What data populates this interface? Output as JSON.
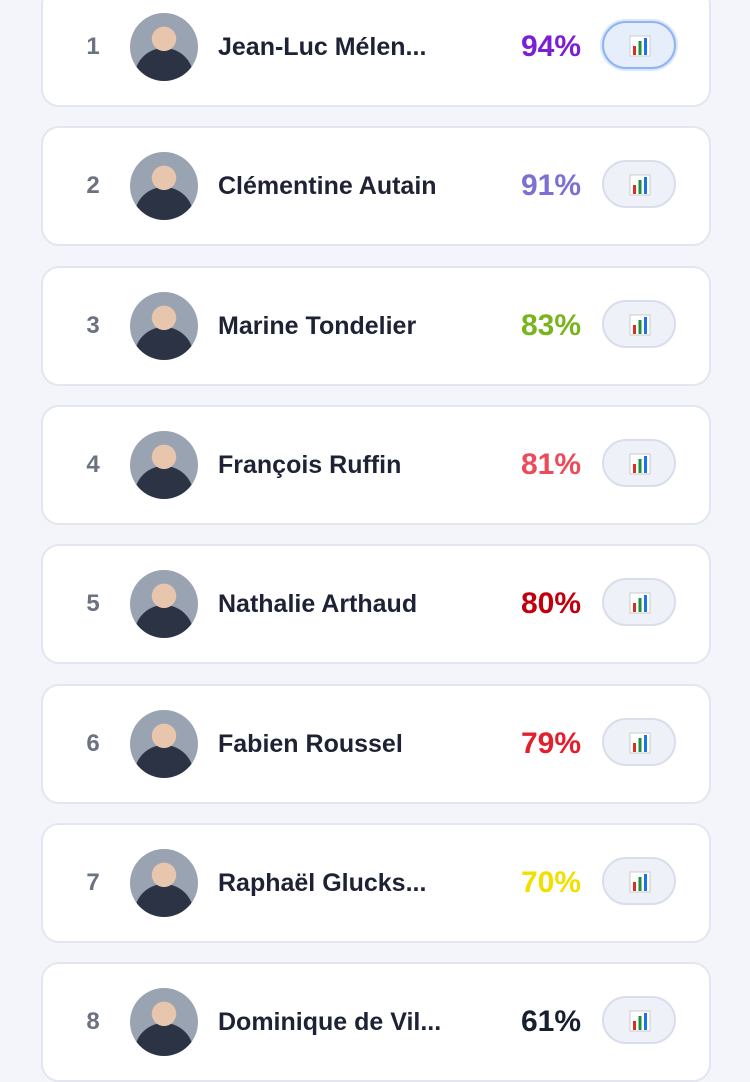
{
  "rows": [
    {
      "rank": "1",
      "name": "Jean-Luc Mélen...",
      "score": "94%",
      "color": "#7a1fd4"
    },
    {
      "rank": "2",
      "name": "Clémentine Autain",
      "score": "91%",
      "color": "#7c70d2"
    },
    {
      "rank": "3",
      "name": "Marine Tondelier",
      "score": "83%",
      "color": "#79b41c"
    },
    {
      "rank": "4",
      "name": "François Ruffin",
      "score": "81%",
      "color": "#ec4c5a"
    },
    {
      "rank": "5",
      "name": "Nathalie Arthaud",
      "score": "80%",
      "color": "#c0000d"
    },
    {
      "rank": "6",
      "name": "Fabien Roussel",
      "score": "79%",
      "color": "#e41f2d"
    },
    {
      "rank": "7",
      "name": "Raphaël Glucks...",
      "score": "70%",
      "color": "#f1df00"
    },
    {
      "rank": "8",
      "name": "Dominique de Vil...",
      "score": "61%",
      "color": "#17202e"
    }
  ]
}
